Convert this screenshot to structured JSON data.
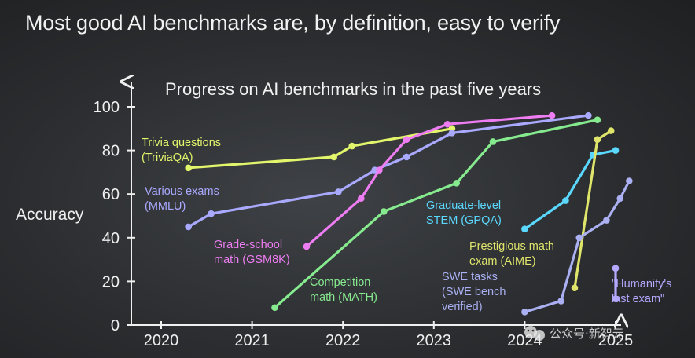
{
  "slide": {
    "title": "Most good AI benchmarks are, by definition, easy to verify"
  },
  "watermark": {
    "text": "公众号·新智元",
    "icon": "wechat-icon"
  },
  "chart_data": {
    "type": "line",
    "title": "Progress on AI benchmarks in the past five years",
    "ylabel": "Accuracy",
    "xlabel": "",
    "ylim": [
      0,
      100
    ],
    "xlim": [
      2019.7,
      2025.25
    ],
    "yticks": [
      0,
      20,
      40,
      60,
      80,
      100
    ],
    "xticks": [
      "2020",
      "2021",
      "2022",
      "2023",
      "2024",
      "2025"
    ],
    "grid": false,
    "series": [
      {
        "name": "Trivia questions (TriviaQA)",
        "label_lines": [
          "Trivia questions",
          "(TriviaQA)"
        ],
        "color": "#e3f56b",
        "points": [
          [
            2020.3,
            72
          ],
          [
            2021.9,
            77
          ],
          [
            2022.1,
            82
          ],
          [
            2023.2,
            90
          ]
        ]
      },
      {
        "name": "Various exams (MMLU)",
        "label_lines": [
          "Various exams",
          "(MMLU)"
        ],
        "color": "#a9a9ff",
        "points": [
          [
            2020.3,
            45
          ],
          [
            2020.55,
            51
          ],
          [
            2021.95,
            61
          ],
          [
            2022.35,
            71
          ],
          [
            2022.7,
            77
          ],
          [
            2023.2,
            88
          ],
          [
            2024.7,
            96
          ]
        ]
      },
      {
        "name": "Grade-school math (GSM8K)",
        "label_lines": [
          "Grade-school",
          "math (GSM8K)"
        ],
        "color": "#ee7cf2",
        "points": [
          [
            2021.6,
            36
          ],
          [
            2022.2,
            58
          ],
          [
            2022.4,
            71
          ],
          [
            2022.7,
            85
          ],
          [
            2023.15,
            92
          ],
          [
            2024.3,
            96
          ]
        ]
      },
      {
        "name": "Competition math (MATH)",
        "label_lines": [
          "Competition",
          "math (MATH)"
        ],
        "color": "#86ea8f",
        "points": [
          [
            2021.25,
            8
          ],
          [
            2022.45,
            52
          ],
          [
            2023.25,
            65
          ],
          [
            2023.65,
            84
          ],
          [
            2024.8,
            94
          ]
        ]
      },
      {
        "name": "Graduate-level STEM (GPQA)",
        "label_lines": [
          "Graduate-level",
          "STEM (GPQA)"
        ],
        "color": "#5ad8ff",
        "points": [
          [
            2024.0,
            44
          ],
          [
            2024.45,
            57
          ],
          [
            2024.75,
            78
          ],
          [
            2025.0,
            80
          ]
        ]
      },
      {
        "name": "Prestigious math exam (AIME)",
        "label_lines": [
          "Prestigious math",
          "exam (AIME)"
        ],
        "color": "#dfe56a",
        "points": [
          [
            2024.55,
            17
          ],
          [
            2024.8,
            85
          ],
          [
            2024.95,
            89
          ]
        ]
      },
      {
        "name": "SWE tasks (SWE bench verified)",
        "label_lines": [
          "SWE tasks",
          "(SWE bench",
          "verified)"
        ],
        "color": "#aab0f2",
        "points": [
          [
            2024.0,
            6
          ],
          [
            2024.4,
            11
          ],
          [
            2024.6,
            40
          ],
          [
            2024.9,
            48
          ],
          [
            2025.05,
            58
          ],
          [
            2025.15,
            66
          ]
        ]
      },
      {
        "name": "\"Humanity's last exam\"",
        "label_lines": [
          "\"Humanity's",
          "last exam\""
        ],
        "color": "#b5a8ff",
        "points": [
          [
            2025.0,
            12
          ],
          [
            2025.0,
            26
          ]
        ]
      }
    ]
  }
}
